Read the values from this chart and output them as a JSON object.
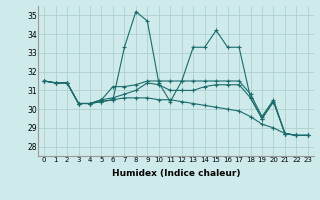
{
  "xlabel": "Humidex (Indice chaleur)",
  "xlim": [
    -0.5,
    23.5
  ],
  "ylim": [
    27.5,
    35.5
  ],
  "yticks": [
    28,
    29,
    30,
    31,
    32,
    33,
    34,
    35
  ],
  "xticks": [
    0,
    1,
    2,
    3,
    4,
    5,
    6,
    7,
    8,
    9,
    10,
    11,
    12,
    13,
    14,
    15,
    16,
    17,
    18,
    19,
    20,
    21,
    22,
    23
  ],
  "background_color": "#ceeaea",
  "grid_color": "#b0d0d0",
  "line_color": "#1a6b6b",
  "line1": [
    31.5,
    31.4,
    31.4,
    30.3,
    30.3,
    30.4,
    30.5,
    33.3,
    35.2,
    34.7,
    31.4,
    30.4,
    31.5,
    33.3,
    33.3,
    34.2,
    33.3,
    33.3,
    30.6,
    29.5,
    30.4,
    28.7,
    28.6,
    28.6
  ],
  "line2": [
    31.5,
    31.4,
    31.4,
    30.3,
    30.3,
    30.5,
    31.2,
    31.2,
    31.3,
    31.5,
    31.5,
    31.5,
    31.5,
    31.5,
    31.5,
    31.5,
    31.5,
    31.5,
    30.8,
    29.6,
    30.5,
    28.7,
    28.6,
    28.6
  ],
  "line3": [
    31.5,
    31.4,
    31.4,
    30.3,
    30.3,
    30.5,
    30.6,
    30.8,
    31.0,
    31.4,
    31.3,
    31.0,
    31.0,
    31.0,
    31.2,
    31.3,
    31.3,
    31.3,
    30.6,
    29.5,
    30.4,
    28.7,
    28.6,
    28.6
  ],
  "line4": [
    31.5,
    31.4,
    31.4,
    30.3,
    30.3,
    30.4,
    30.5,
    30.6,
    30.6,
    30.6,
    30.5,
    30.5,
    30.4,
    30.3,
    30.2,
    30.1,
    30.0,
    29.9,
    29.6,
    29.2,
    29.0,
    28.7,
    28.6,
    28.6
  ]
}
